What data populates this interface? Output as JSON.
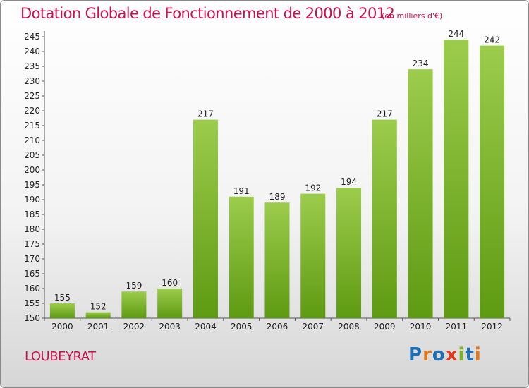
{
  "header": {
    "title": "Dotation Globale de Fonctionnement de 2000 à 2012",
    "subtitle": "(en milliers d'€)"
  },
  "footer": {
    "commune": "LOUBEYRAT",
    "brand": "Proxiti",
    "brand_colors": [
      "#1f6fb4",
      "#e0771a",
      "#1f6fb4",
      "#e03a1a",
      "#7bb21f",
      "#1f6fb4",
      "#e0771a"
    ]
  },
  "chart_data": {
    "type": "bar",
    "categories": [
      "2000",
      "2001",
      "2002",
      "2003",
      "2004",
      "2005",
      "2006",
      "2007",
      "2008",
      "2009",
      "2010",
      "2011",
      "2012"
    ],
    "values": [
      155,
      152,
      159,
      160,
      217,
      191,
      189,
      192,
      194,
      217,
      234,
      244,
      242
    ],
    "title": "Dotation Globale de Fonctionnement de 2000 à 2012",
    "subtitle": "(en milliers d'€)",
    "ylim": [
      150,
      245
    ],
    "yticks": [
      150,
      155,
      160,
      165,
      170,
      175,
      180,
      185,
      190,
      195,
      200,
      205,
      210,
      215,
      220,
      225,
      230,
      235,
      240,
      245
    ],
    "grid": false,
    "colors": {
      "bar_light": "#9ccc4c",
      "bar_dark": "#5e9a12",
      "axis": "#555555"
    }
  }
}
